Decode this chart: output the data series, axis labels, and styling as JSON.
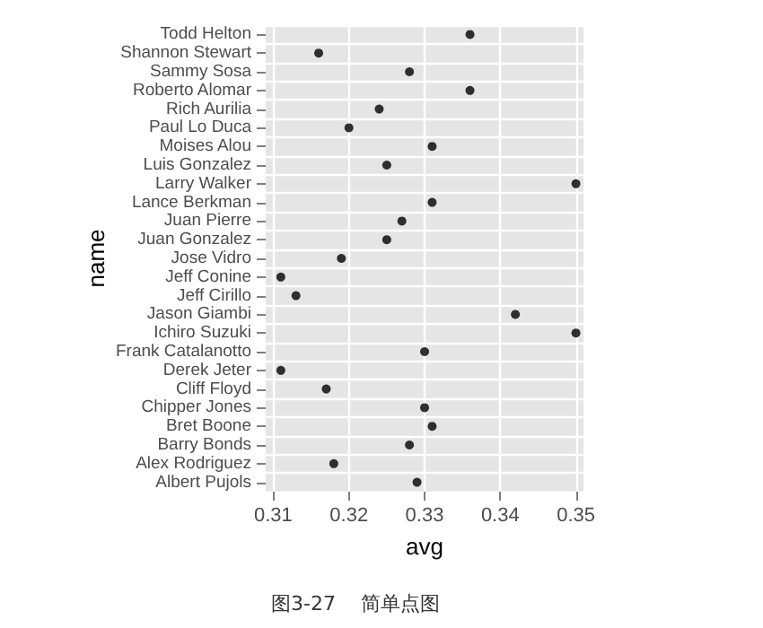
{
  "chart_data": {
    "type": "scatter",
    "xlabel": "avg",
    "ylabel": "name",
    "categories": [
      "Todd Helton",
      "Shannon Stewart",
      "Sammy Sosa",
      "Roberto Alomar",
      "Rich Aurilia",
      "Paul Lo Duca",
      "Moises Alou",
      "Luis Gonzalez",
      "Larry Walker",
      "Lance Berkman",
      "Juan Pierre",
      "Juan Gonzalez",
      "Jose Vidro",
      "Jeff Conine",
      "Jeff Cirillo",
      "Jason Giambi",
      "Ichiro Suzuki",
      "Frank Catalanotto",
      "Derek Jeter",
      "Cliff Floyd",
      "Chipper Jones",
      "Bret Boone",
      "Barry Bonds",
      "Alex Rodriguez",
      "Albert Pujols"
    ],
    "values": [
      0.336,
      0.316,
      0.328,
      0.336,
      0.324,
      0.32,
      0.331,
      0.325,
      0.35,
      0.331,
      0.327,
      0.325,
      0.319,
      0.311,
      0.313,
      0.342,
      0.35,
      0.33,
      0.311,
      0.317,
      0.33,
      0.331,
      0.328,
      0.318,
      0.329
    ],
    "orientation": "horizontal",
    "color": "#000000",
    "marker": "circle",
    "xlim": [
      0.309,
      0.351
    ],
    "xticks": [
      0.31,
      0.32,
      0.33,
      0.34,
      0.35
    ],
    "grid": true,
    "annotations": [
      "图3-27    简单点图"
    ]
  }
}
